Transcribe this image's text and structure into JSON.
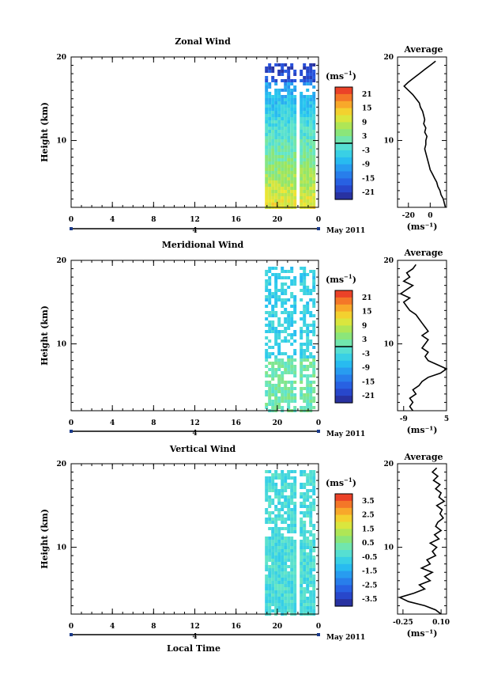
{
  "date_label": "May 2011",
  "x_axis_label": "Local Time",
  "unit_label": "(ms",
  "unit_exp": "−1",
  "avg_title": "Average",
  "chart_data": [
    {
      "type": "heatmap",
      "title": "Zonal Wind",
      "ylabel": "Height (km)",
      "xlabel": "",
      "xlim": [
        0,
        24
      ],
      "ylim": [
        2,
        20
      ],
      "xticks": [
        "0",
        "4",
        "8",
        "12",
        "16",
        "20",
        "0"
      ],
      "day_label": "4",
      "yticks": [
        "10",
        "20"
      ],
      "data_coverage_x": [
        18.8,
        23.6
      ],
      "colorbar": {
        "unit": "ms⁻¹",
        "ticks": [
          "21",
          "15",
          "9",
          "3",
          "-3",
          "-9",
          "-15",
          "-21"
        ],
        "range": [
          -24,
          24
        ]
      },
      "average_profile": {
        "title": "Average",
        "xlabel": "(ms⁻¹)",
        "xticks": [
          "-20",
          "0"
        ],
        "xlim": [
          -30,
          15
        ],
        "height": [
          2,
          2.5,
          3,
          3.5,
          4,
          4.5,
          5,
          5.5,
          6,
          6.5,
          7,
          7.5,
          8,
          8.5,
          9,
          9.5,
          10,
          10.5,
          11,
          11.5,
          12,
          12.5,
          13,
          13.5,
          14,
          14.5,
          15,
          15.5,
          16,
          16.5,
          17,
          17.5,
          18,
          18.5,
          19,
          19.5
        ],
        "values": [
          14,
          13,
          12,
          10,
          9,
          7,
          6,
          4,
          2,
          0,
          -1,
          -2,
          -3,
          -4,
          -5,
          -4,
          -4,
          -3,
          -5,
          -4,
          -6,
          -5,
          -6,
          -7,
          -9,
          -10,
          -13,
          -16,
          -20,
          -24,
          -20,
          -15,
          -10,
          -5,
          0,
          5
        ]
      }
    },
    {
      "type": "heatmap",
      "title": "Meridional Wind",
      "ylabel": "Height (km)",
      "xlabel": "",
      "xlim": [
        0,
        24
      ],
      "ylim": [
        2,
        20
      ],
      "xticks": [
        "0",
        "4",
        "8",
        "12",
        "16",
        "20",
        "0"
      ],
      "day_label": "4",
      "yticks": [
        "10",
        "20"
      ],
      "data_coverage_x": [
        18.8,
        23.6
      ],
      "colorbar": {
        "unit": "ms⁻¹",
        "ticks": [
          "21",
          "15",
          "9",
          "3",
          "-3",
          "-9",
          "-15",
          "-21"
        ],
        "range": [
          -24,
          24
        ]
      },
      "average_profile": {
        "title": "Average",
        "xlabel": "(ms⁻¹)",
        "xticks": [
          "-9",
          "5"
        ],
        "xlim": [
          -11,
          5
        ],
        "height": [
          2,
          2.5,
          3,
          3.5,
          4,
          4.5,
          5,
          5.5,
          6,
          6.5,
          7,
          7.5,
          8,
          8.5,
          9,
          9.5,
          10,
          10.5,
          11,
          11.5,
          12,
          12.5,
          13,
          13.5,
          14,
          14.5,
          15,
          15.5,
          16,
          16.5,
          17,
          17.5,
          18,
          18.5,
          19,
          19.5
        ],
        "values": [
          -6,
          -7,
          -6,
          -7,
          -5,
          -6,
          -4,
          -3,
          -1,
          3,
          5,
          2,
          -1,
          -2,
          -1,
          -3,
          -2,
          -1,
          -3,
          -1,
          -2,
          -3,
          -4,
          -5,
          -7,
          -8,
          -9,
          -7,
          -10,
          -8,
          -6,
          -9,
          -7,
          -8,
          -6,
          -5
        ]
      }
    },
    {
      "type": "heatmap",
      "title": "Vertical Wind",
      "ylabel": "Height (km)",
      "xlabel": "Local Time",
      "xlim": [
        0,
        24
      ],
      "ylim": [
        2,
        20
      ],
      "xticks": [
        "0",
        "4",
        "8",
        "12",
        "16",
        "20",
        "0"
      ],
      "day_label": "4",
      "yticks": [
        "10",
        "20"
      ],
      "data_coverage_x": [
        18.8,
        23.6
      ],
      "colorbar": {
        "unit": "ms⁻¹",
        "ticks": [
          "3.5",
          "2.5",
          "1.5",
          "0.5",
          "-0.5",
          "-1.5",
          "-2.5",
          "-3.5"
        ],
        "range": [
          -4,
          4
        ]
      },
      "average_profile": {
        "title": "Average",
        "xlabel": "(ms⁻¹)",
        "xticks": [
          "-0.25",
          "0.10"
        ],
        "xlim": [
          -0.3,
          0.15
        ],
        "height": [
          2,
          2.5,
          3,
          3.5,
          4,
          4.5,
          5,
          5.5,
          6,
          6.5,
          7,
          7.5,
          8,
          8.5,
          9,
          9.5,
          10,
          10.5,
          11,
          11.5,
          12,
          12.5,
          13,
          13.5,
          14,
          14.5,
          15,
          15.5,
          16,
          16.5,
          17,
          17.5,
          18,
          18.5,
          19,
          19.5
        ],
        "values": [
          0.1,
          0.05,
          -0.05,
          -0.2,
          -0.28,
          -0.15,
          -0.05,
          -0.1,
          0.0,
          -0.05,
          0.02,
          -0.08,
          0.0,
          -0.03,
          0.05,
          0.02,
          0.06,
          0.0,
          0.08,
          0.04,
          0.1,
          0.05,
          0.07,
          0.12,
          0.09,
          0.11,
          0.06,
          0.13,
          0.08,
          0.1,
          0.05,
          0.09,
          0.03,
          0.07,
          0.02,
          0.06
        ]
      }
    }
  ]
}
